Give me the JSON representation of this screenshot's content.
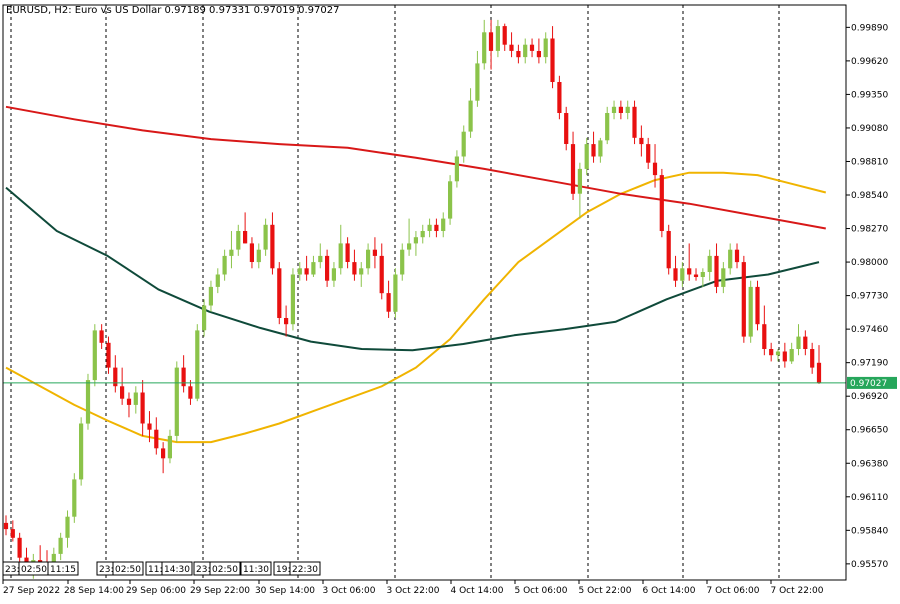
{
  "header": {
    "symbol_line": "EURUSD, H2:  Euro vs US Dollar  0.97189 0.97331 0.97019 0.97027"
  },
  "chart_data": {
    "type": "candlestick",
    "symbol": "EURUSD",
    "timeframe": "H2",
    "description": "Euro vs US Dollar",
    "ohlc_last": {
      "open": 0.97189,
      "high": 0.97331,
      "low": 0.97019,
      "close": 0.97027
    },
    "current_price": "0.97027",
    "y_ticks": [
      "0.99890",
      "0.99620",
      "0.99350",
      "0.99080",
      "0.98810",
      "0.98540",
      "0.98270",
      "0.98000",
      "0.97730",
      "0.97460",
      "0.97190",
      "0.96920",
      "0.96650",
      "0.96380",
      "0.96110",
      "0.95840",
      "0.95570"
    ],
    "ylim": [
      0.9544,
      1.0007
    ],
    "x_ticks": [
      "27 Sep 2022",
      "28 Sep 14:00",
      "29 Sep 06:00",
      "29 Sep 22:00",
      "30 Sep 14:00",
      "3 Oct 06:00",
      "3 Oct 22:00",
      "4 Oct 14:00",
      "5 Oct 06:00",
      "5 Oct 22:00",
      "6 Oct 14:00",
      "7 Oct 06:00",
      "7 Oct 22:00"
    ],
    "session_labels": [
      "23:",
      "02:50",
      "11:15",
      "23:",
      "02:50",
      "11:",
      "14:30",
      "23:",
      "02:50",
      "11:30",
      "19:",
      "22:30"
    ],
    "colors": {
      "bull": "#8bc34a",
      "bear": "#e81010",
      "ma_fast": "#f0b400",
      "ma_mid": "#d81818",
      "ma_slow": "#0f4a3a",
      "price_line": "#26a65b",
      "grid": "#000000"
    },
    "candles": [
      [
        0.959,
        0.9596,
        0.958,
        0.9585
      ],
      [
        0.9585,
        0.9592,
        0.9575,
        0.9578
      ],
      [
        0.9578,
        0.9582,
        0.9558,
        0.9562
      ],
      [
        0.9562,
        0.957,
        0.955,
        0.9556
      ],
      [
        0.9556,
        0.9565,
        0.9545,
        0.956
      ],
      [
        0.956,
        0.9572,
        0.9552,
        0.9557
      ],
      [
        0.9557,
        0.9568,
        0.955,
        0.9554
      ],
      [
        0.9554,
        0.957,
        0.955,
        0.9565
      ],
      [
        0.9565,
        0.9582,
        0.956,
        0.9578
      ],
      [
        0.9578,
        0.96,
        0.957,
        0.9595
      ],
      [
        0.9595,
        0.963,
        0.959,
        0.9625
      ],
      [
        0.9625,
        0.9675,
        0.962,
        0.967
      ],
      [
        0.967,
        0.971,
        0.9665,
        0.9705
      ],
      [
        0.9705,
        0.975,
        0.97,
        0.9745
      ],
      [
        0.9745,
        0.975,
        0.973,
        0.9735
      ],
      [
        0.9735,
        0.974,
        0.971,
        0.9715
      ],
      [
        0.9715,
        0.9725,
        0.9695,
        0.97
      ],
      [
        0.97,
        0.9715,
        0.9685,
        0.969
      ],
      [
        0.969,
        0.9695,
        0.9675,
        0.9685
      ],
      [
        0.9685,
        0.97,
        0.9678,
        0.9695
      ],
      [
        0.9695,
        0.9705,
        0.966,
        0.967
      ],
      [
        0.967,
        0.968,
        0.9655,
        0.9665
      ],
      [
        0.9665,
        0.9675,
        0.9645,
        0.965
      ],
      [
        0.965,
        0.9655,
        0.963,
        0.9642
      ],
      [
        0.9642,
        0.9665,
        0.9638,
        0.966
      ],
      [
        0.966,
        0.972,
        0.9655,
        0.9715
      ],
      [
        0.9715,
        0.9725,
        0.9695,
        0.97
      ],
      [
        0.97,
        0.9705,
        0.9685,
        0.969
      ],
      [
        0.969,
        0.975,
        0.9688,
        0.9745
      ],
      [
        0.9745,
        0.977,
        0.974,
        0.9765
      ],
      [
        0.9765,
        0.9785,
        0.976,
        0.978
      ],
      [
        0.978,
        0.9795,
        0.9775,
        0.979
      ],
      [
        0.979,
        0.981,
        0.9785,
        0.9805
      ],
      [
        0.9805,
        0.9825,
        0.9795,
        0.981
      ],
      [
        0.981,
        0.983,
        0.9805,
        0.9825
      ],
      [
        0.9825,
        0.984,
        0.9815,
        0.9815
      ],
      [
        0.9815,
        0.982,
        0.9795,
        0.98
      ],
      [
        0.98,
        0.9815,
        0.9795,
        0.981
      ],
      [
        0.981,
        0.9835,
        0.9805,
        0.983
      ],
      [
        0.983,
        0.984,
        0.979,
        0.9795
      ],
      [
        0.9795,
        0.98,
        0.975,
        0.9755
      ],
      [
        0.9755,
        0.9765,
        0.974,
        0.975
      ],
      [
        0.975,
        0.9795,
        0.9745,
        0.979
      ],
      [
        0.979,
        0.98,
        0.9785,
        0.9795
      ],
      [
        0.9795,
        0.9805,
        0.9785,
        0.979
      ],
      [
        0.979,
        0.9805,
        0.9788,
        0.98
      ],
      [
        0.98,
        0.9815,
        0.9795,
        0.9805
      ],
      [
        0.9805,
        0.981,
        0.978,
        0.9785
      ],
      [
        0.9785,
        0.98,
        0.978,
        0.9795
      ],
      [
        0.9795,
        0.983,
        0.979,
        0.9815
      ],
      [
        0.9815,
        0.982,
        0.9795,
        0.98
      ],
      [
        0.98,
        0.981,
        0.9785,
        0.979
      ],
      [
        0.979,
        0.98,
        0.978,
        0.9795
      ],
      [
        0.9795,
        0.9815,
        0.979,
        0.981
      ],
      [
        0.981,
        0.982,
        0.9795,
        0.9805
      ],
      [
        0.9805,
        0.9815,
        0.977,
        0.9775
      ],
      [
        0.9775,
        0.9785,
        0.9755,
        0.976
      ],
      [
        0.976,
        0.9795,
        0.9755,
        0.979
      ],
      [
        0.979,
        0.9815,
        0.9785,
        0.981
      ],
      [
        0.981,
        0.9835,
        0.9805,
        0.9815
      ],
      [
        0.9815,
        0.9825,
        0.9805,
        0.982
      ],
      [
        0.982,
        0.983,
        0.9815,
        0.9825
      ],
      [
        0.9825,
        0.9835,
        0.982,
        0.983
      ],
      [
        0.983,
        0.9835,
        0.982,
        0.9825
      ],
      [
        0.9825,
        0.984,
        0.982,
        0.9835
      ],
      [
        0.9835,
        0.987,
        0.983,
        0.9865
      ],
      [
        0.9865,
        0.989,
        0.986,
        0.9885
      ],
      [
        0.9885,
        0.991,
        0.988,
        0.9905
      ],
      [
        0.9905,
        0.994,
        0.99,
        0.993
      ],
      [
        0.993,
        0.997,
        0.9925,
        0.996
      ],
      [
        0.996,
        0.9995,
        0.9955,
        0.9985
      ],
      [
        0.9985,
        0.9995,
        0.9955,
        0.997
      ],
      [
        0.997,
        0.9995,
        0.9965,
        0.999
      ],
      [
        0.999,
        0.9992,
        0.997,
        0.9975
      ],
      [
        0.9975,
        0.9985,
        0.9965,
        0.997
      ],
      [
        0.997,
        0.9975,
        0.996,
        0.9965
      ],
      [
        0.9965,
        0.998,
        0.996,
        0.9975
      ],
      [
        0.9975,
        0.998,
        0.9965,
        0.997
      ],
      [
        0.997,
        0.998,
        0.996,
        0.9965
      ],
      [
        0.9965,
        0.9985,
        0.996,
        0.998
      ],
      [
        0.998,
        0.999,
        0.994,
        0.9945
      ],
      [
        0.9945,
        0.995,
        0.9915,
        0.992
      ],
      [
        0.992,
        0.9925,
        0.989,
        0.9895
      ],
      [
        0.9895,
        0.9905,
        0.985,
        0.9855
      ],
      [
        0.9855,
        0.988,
        0.9835,
        0.9875
      ],
      [
        0.9875,
        0.99,
        0.987,
        0.9895
      ],
      [
        0.9895,
        0.9905,
        0.988,
        0.9885
      ],
      [
        0.9885,
        0.99,
        0.988,
        0.9898
      ],
      [
        0.9898,
        0.9925,
        0.9895,
        0.992
      ],
      [
        0.992,
        0.993,
        0.9915,
        0.9925
      ],
      [
        0.9925,
        0.993,
        0.9915,
        0.992
      ],
      [
        0.992,
        0.993,
        0.9915,
        0.9925
      ],
      [
        0.9925,
        0.993,
        0.9895,
        0.99
      ],
      [
        0.99,
        0.991,
        0.9885,
        0.9895
      ],
      [
        0.9895,
        0.99,
        0.9875,
        0.988
      ],
      [
        0.988,
        0.9895,
        0.986,
        0.987
      ],
      [
        0.987,
        0.9875,
        0.982,
        0.9825
      ],
      [
        0.9825,
        0.983,
        0.979,
        0.9795
      ],
      [
        0.9795,
        0.9805,
        0.978,
        0.9785
      ],
      [
        0.9785,
        0.98,
        0.978,
        0.9795
      ],
      [
        0.9795,
        0.9815,
        0.9785,
        0.979
      ],
      [
        0.979,
        0.9795,
        0.9785,
        0.9788
      ],
      [
        0.9788,
        0.9795,
        0.978,
        0.9792
      ],
      [
        0.9792,
        0.981,
        0.9785,
        0.9805
      ],
      [
        0.9805,
        0.9815,
        0.9775,
        0.978
      ],
      [
        0.978,
        0.98,
        0.9775,
        0.9795
      ],
      [
        0.9795,
        0.9815,
        0.979,
        0.981
      ],
      [
        0.981,
        0.9815,
        0.9795,
        0.98
      ],
      [
        0.98,
        0.9805,
        0.9735,
        0.974
      ],
      [
        0.974,
        0.9785,
        0.9735,
        0.978
      ],
      [
        0.978,
        0.9785,
        0.9745,
        0.975
      ],
      [
        0.975,
        0.9765,
        0.9725,
        0.973
      ],
      [
        0.973,
        0.9735,
        0.972,
        0.9725
      ],
      [
        0.9725,
        0.973,
        0.972,
        0.9728
      ],
      [
        0.9728,
        0.9735,
        0.9715,
        0.972
      ],
      [
        0.972,
        0.9735,
        0.9718,
        0.973
      ],
      [
        0.973,
        0.975,
        0.9725,
        0.974
      ],
      [
        0.974,
        0.9745,
        0.9725,
        0.973
      ],
      [
        0.973,
        0.9735,
        0.971,
        0.9715
      ],
      [
        0.97189,
        0.97331,
        0.97019,
        0.97027
      ]
    ],
    "series": [
      {
        "values": [
          [
            0,
            0.9715
          ],
          [
            5,
            0.97
          ],
          [
            10,
            0.9685
          ],
          [
            15,
            0.9672
          ],
          [
            20,
            0.966
          ],
          [
            25,
            0.9655
          ],
          [
            30,
            0.9655
          ],
          [
            35,
            0.9662
          ],
          [
            40,
            0.967
          ],
          [
            45,
            0.968
          ],
          [
            50,
            0.969
          ],
          [
            55,
            0.97
          ],
          [
            60,
            0.9715
          ],
          [
            65,
            0.9738
          ],
          [
            70,
            0.977
          ],
          [
            75,
            0.98
          ],
          [
            80,
            0.982
          ],
          [
            85,
            0.984
          ],
          [
            90,
            0.9855
          ],
          [
            95,
            0.9866
          ],
          [
            100,
            0.9872
          ],
          [
            105,
            0.9872
          ],
          [
            110,
            0.987
          ],
          [
            115,
            0.9863
          ],
          [
            120,
            0.9856
          ]
        ]
      },
      {
        "values": [
          [
            0,
            0.9925
          ],
          [
            10,
            0.9915
          ],
          [
            20,
            0.9906
          ],
          [
            30,
            0.9899
          ],
          [
            40,
            0.9895
          ],
          [
            50,
            0.9892
          ],
          [
            60,
            0.9884
          ],
          [
            70,
            0.9875
          ],
          [
            80,
            0.9865
          ],
          [
            90,
            0.9855
          ],
          [
            100,
            0.9847
          ],
          [
            110,
            0.9837
          ],
          [
            120,
            0.9827
          ]
        ]
      },
      {
        "values": [
          [
            0,
            0.986
          ],
          [
            10,
            0.9825
          ],
          [
            20,
            0.9805
          ],
          [
            30,
            0.9778
          ],
          [
            40,
            0.976
          ],
          [
            50,
            0.9747
          ],
          [
            60,
            0.9736
          ],
          [
            70,
            0.973
          ],
          [
            80,
            0.9729
          ],
          [
            90,
            0.9734
          ],
          [
            100,
            0.9741
          ],
          [
            110,
            0.9746
          ],
          [
            120,
            0.9752
          ],
          [
            130,
            0.977
          ],
          [
            140,
            0.9785
          ],
          [
            150,
            0.979
          ],
          [
            160,
            0.98
          ]
        ]
      }
    ]
  }
}
